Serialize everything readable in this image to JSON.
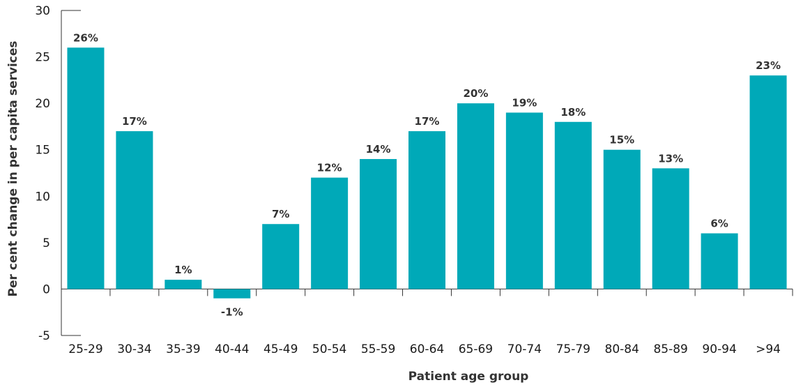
{
  "chart_data": {
    "type": "bar",
    "categories": [
      "25-29",
      "30-34",
      "35-39",
      "40-44",
      "45-49",
      "50-54",
      "55-59",
      "60-64",
      "65-69",
      "70-74",
      "75-79",
      "80-84",
      "85-89",
      "90-94",
      ">94"
    ],
    "values": [
      26,
      17,
      1,
      -1,
      7,
      12,
      14,
      17,
      20,
      19,
      18,
      15,
      13,
      6,
      23
    ],
    "data_labels": [
      "26%",
      "17%",
      "1%",
      "-1%",
      "7%",
      "12%",
      "14%",
      "17%",
      "20%",
      "19%",
      "18%",
      "15%",
      "13%",
      "6%",
      "23%"
    ],
    "title": "",
    "xlabel": "Patient age group",
    "ylabel": "Per cent change in per capita services",
    "ylim": [
      -5,
      30
    ],
    "yticks": [
      -5,
      0,
      5,
      10,
      15,
      20,
      25,
      30
    ],
    "grid": false,
    "bar_color": "#00a9b8",
    "axis_color": "#333333"
  }
}
